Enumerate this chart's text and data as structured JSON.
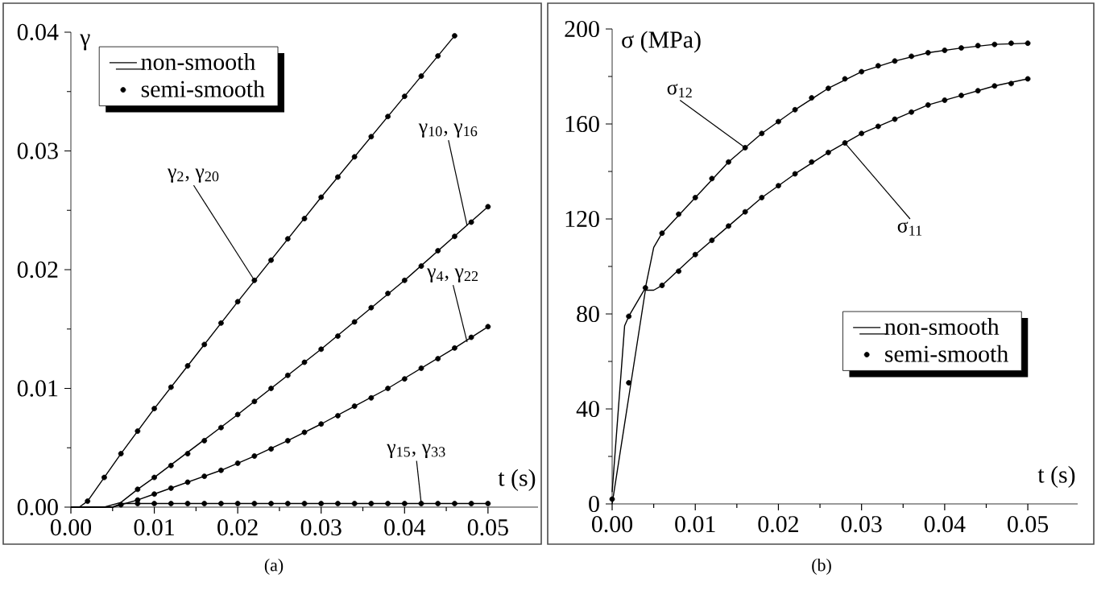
{
  "chart_data": [
    {
      "type": "line",
      "title": "(a)",
      "xlabel": "t (s)",
      "ylabel": "γ",
      "xlim": [
        0,
        0.056
      ],
      "ylim": [
        0,
        0.04
      ],
      "xticks": [
        {
          "value": 0,
          "label": "0.00"
        },
        {
          "value": 0.01,
          "label": "0.01"
        },
        {
          "value": 0.02,
          "label": "0.02"
        },
        {
          "value": 0.03,
          "label": "0.03"
        },
        {
          "value": 0.04,
          "label": "0.04"
        },
        {
          "value": 0.05,
          "label": "0.05"
        }
      ],
      "yticks": [
        {
          "value": 0,
          "label": "0.00"
        },
        {
          "value": 0.01,
          "label": "0.01"
        },
        {
          "value": 0.02,
          "label": "0.02"
        },
        {
          "value": 0.03,
          "label": "0.03"
        },
        {
          "value": 0.04,
          "label": "0.04"
        }
      ],
      "legend": "top left",
      "series": [
        {
          "name": "non-smooth",
          "line_style": "solid",
          "color": "#000000",
          "x": [
            0,
            0.001,
            0.002,
            0.004,
            0.006,
            0.01,
            0.02,
            0.03,
            0.04,
            0.046
          ],
          "values": [
            0,
            0,
            0.0005,
            0.0025,
            0.0045,
            0.0083,
            0.0173,
            0.0261,
            0.0346,
            0.0397
          ]
        },
        {
          "line_style": "solid",
          "color": "#000000",
          "x": [
            0,
            0.004,
            0.006,
            0.008,
            0.01,
            0.02,
            0.03,
            0.04,
            0.05
          ],
          "values": [
            0,
            0,
            0.0004,
            0.0015,
            0.0025,
            0.0078,
            0.0133,
            0.0191,
            0.0253
          ]
        },
        {
          "line_style": "solid",
          "color": "#000000",
          "x": [
            0,
            0.005,
            0.006,
            0.008,
            0.01,
            0.014,
            0.018,
            0.022,
            0.026,
            0.03,
            0.034,
            0.038,
            0.042,
            0.046,
            0.05
          ],
          "values": [
            0,
            0,
            0.0002,
            0.0006,
            0.0011,
            0.0021,
            0.0031,
            0.0043,
            0.0056,
            0.007,
            0.0085,
            0.01,
            0.0117,
            0.0134,
            0.0152
          ]
        },
        {
          "line_style": "solid",
          "color": "#000000",
          "x": [
            0,
            0.005,
            0.006,
            0.05
          ],
          "values": [
            0,
            0,
            0.0003,
            0.0003
          ]
        },
        {
          "name": "semi-smooth",
          "type": "scatter",
          "marker": "circle",
          "color": "#000000",
          "x": [
            0.002,
            0.004,
            0.006,
            0.008,
            0.01,
            0.012,
            0.014,
            0.016,
            0.018,
            0.02,
            0.022,
            0.024,
            0.026,
            0.028,
            0.03,
            0.032,
            0.034,
            0.036,
            0.038,
            0.04,
            0.042,
            0.044,
            0.046
          ],
          "values": [
            0.0005,
            0.0025,
            0.0045,
            0.0064,
            0.0083,
            0.0101,
            0.0119,
            0.0137,
            0.0155,
            0.0173,
            0.0191,
            0.0208,
            0.0226,
            0.0243,
            0.0261,
            0.0278,
            0.0295,
            0.0312,
            0.0329,
            0.0346,
            0.0363,
            0.038,
            0.0397
          ]
        },
        {
          "type": "scatter",
          "marker": "circle",
          "color": "#000000",
          "x": [
            0.008,
            0.01,
            0.012,
            0.014,
            0.016,
            0.018,
            0.02,
            0.022,
            0.024,
            0.026,
            0.028,
            0.03,
            0.032,
            0.034,
            0.036,
            0.038,
            0.04,
            0.042,
            0.044,
            0.046,
            0.048,
            0.05
          ],
          "values": [
            0.0015,
            0.0025,
            0.0035,
            0.0045,
            0.0056,
            0.0067,
            0.0078,
            0.0089,
            0.01,
            0.0111,
            0.0122,
            0.0133,
            0.0144,
            0.0156,
            0.0168,
            0.018,
            0.0191,
            0.0203,
            0.0216,
            0.0228,
            0.024,
            0.0253
          ]
        },
        {
          "type": "scatter",
          "marker": "circle",
          "color": "#000000",
          "x": [
            0.006,
            0.008,
            0.01,
            0.012,
            0.014,
            0.016,
            0.018,
            0.02,
            0.022,
            0.024,
            0.026,
            0.028,
            0.03,
            0.032,
            0.034,
            0.036,
            0.038,
            0.04,
            0.042,
            0.044,
            0.046,
            0.048,
            0.05
          ],
          "values": [
            0.0002,
            0.0006,
            0.0011,
            0.0016,
            0.0021,
            0.0026,
            0.0031,
            0.0037,
            0.0043,
            0.0049,
            0.0056,
            0.0063,
            0.007,
            0.0077,
            0.0085,
            0.0092,
            0.01,
            0.0108,
            0.0117,
            0.0125,
            0.0134,
            0.0143,
            0.0152
          ]
        },
        {
          "type": "scatter",
          "marker": "circle",
          "color": "#000000",
          "x": [
            0.008,
            0.01,
            0.012,
            0.014,
            0.016,
            0.018,
            0.02,
            0.022,
            0.024,
            0.026,
            0.028,
            0.03,
            0.032,
            0.034,
            0.036,
            0.038,
            0.04,
            0.042,
            0.044,
            0.046,
            0.048,
            0.05
          ],
          "values": [
            0.0003,
            0.0003,
            0.0003,
            0.0003,
            0.0003,
            0.0003,
            0.0003,
            0.0003,
            0.0003,
            0.0003,
            0.0003,
            0.0003,
            0.0003,
            0.0003,
            0.0003,
            0.0003,
            0.0003,
            0.0003,
            0.0003,
            0.0003,
            0.0003,
            0.0003
          ]
        }
      ],
      "annotations": [
        {
          "text": "γ$_{2}$, γ$_{20}$",
          "x": 0.022,
          "y": 0.0191
        },
        {
          "text": "γ$_{10}$, γ$_{16}$",
          "x": 0.0475,
          "y": 0.0237
        },
        {
          "text": "γ$_{4}$, γ$_{22}$",
          "x": 0.0475,
          "y": 0.0139
        },
        {
          "text": "γ$_{15}$, γ$_{33}$",
          "x": 0.042,
          "y": 0.0003
        }
      ]
    },
    {
      "type": "line",
      "title": "(b)",
      "xlabel": "t (s)",
      "ylabel": "σ (MPa)",
      "xlim": [
        0,
        0.056
      ],
      "ylim": [
        0,
        200
      ],
      "xticks": [
        {
          "value": 0,
          "label": "0.00"
        },
        {
          "value": 0.01,
          "label": "0.01"
        },
        {
          "value": 0.02,
          "label": "0.02"
        },
        {
          "value": 0.03,
          "label": "0.03"
        },
        {
          "value": 0.04,
          "label": "0.04"
        },
        {
          "value": 0.05,
          "label": "0.05"
        }
      ],
      "yticks": [
        0,
        40,
        80,
        120,
        160,
        200
      ],
      "legend": "bottom right",
      "series": [
        {
          "name": "non-smooth",
          "line_style": "solid",
          "color": "#000000",
          "x": [
            0,
            0.0015,
            0.002,
            0.004,
            0.005,
            0.006,
            0.01,
            0.014,
            0.018,
            0.022,
            0.026,
            0.03,
            0.034,
            0.038,
            0.042,
            0.046,
            0.05
          ],
          "values": [
            5,
            75,
            79,
            91,
            108,
            114,
            129,
            144,
            156,
            166,
            175,
            182,
            186.5,
            190,
            192,
            193.5,
            194
          ]
        },
        {
          "line_style": "solid",
          "color": "#000000",
          "x": [
            0,
            0.002,
            0.004,
            0.005,
            0.006,
            0.01,
            0.014,
            0.018,
            0.022,
            0.026,
            0.03,
            0.034,
            0.038,
            0.042,
            0.046,
            0.05
          ],
          "values": [
            0,
            45,
            90,
            90,
            92,
            105,
            117,
            129,
            139,
            148,
            156,
            162,
            168,
            172,
            176,
            179
          ]
        },
        {
          "name": "semi-smooth",
          "type": "scatter",
          "marker": "circle",
          "color": "#000000",
          "x": [
            0,
            0.002,
            0.004,
            0.006,
            0.008,
            0.01,
            0.012,
            0.014,
            0.016,
            0.018,
            0.02,
            0.022,
            0.024,
            0.026,
            0.028,
            0.03,
            0.032,
            0.034,
            0.036,
            0.038,
            0.04,
            0.042,
            0.044,
            0.046,
            0.048,
            0.05
          ],
          "values": [
            2,
            79,
            91,
            114,
            122,
            129,
            137,
            144,
            150,
            156,
            161,
            166,
            171,
            175,
            179,
            182,
            184.5,
            186.5,
            188.5,
            190,
            191,
            192,
            193,
            193.5,
            194,
            194
          ]
        },
        {
          "type": "scatter",
          "marker": "circle",
          "color": "#000000",
          "x": [
            0.002,
            0.006,
            0.008,
            0.01,
            0.012,
            0.014,
            0.016,
            0.018,
            0.02,
            0.022,
            0.024,
            0.026,
            0.028,
            0.03,
            0.032,
            0.034,
            0.036,
            0.038,
            0.04,
            0.042,
            0.044,
            0.046,
            0.048,
            0.05
          ],
          "values": [
            51,
            92,
            98,
            105,
            111,
            117,
            123,
            129,
            134,
            139,
            144,
            148,
            152,
            156,
            159,
            162,
            165,
            168,
            170,
            172,
            174,
            176,
            177,
            179
          ]
        }
      ],
      "annotations": [
        {
          "text": "σ$_{12}$",
          "x": 0.016,
          "y": 150
        },
        {
          "text": "σ$_{11}$",
          "x": 0.028,
          "y": 152
        }
      ]
    }
  ]
}
